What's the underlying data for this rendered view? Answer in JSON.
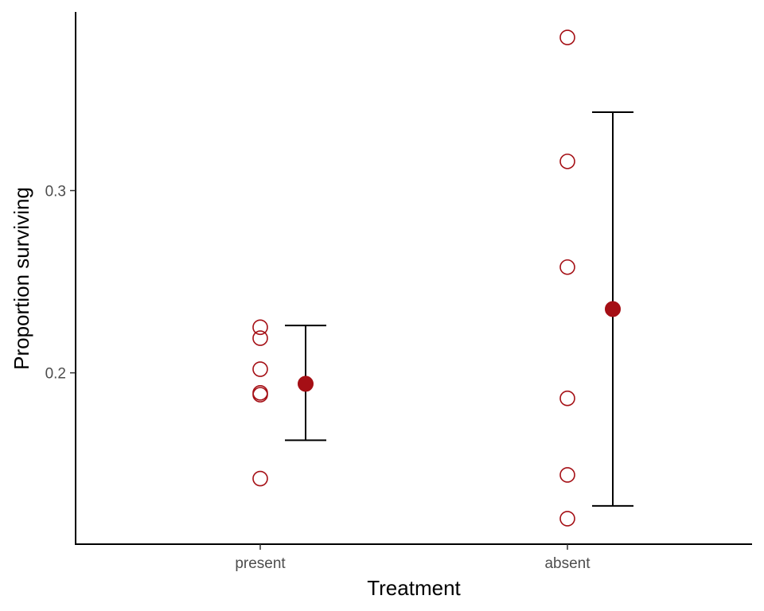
{
  "chart_data": {
    "type": "scatter",
    "title": "",
    "xlabel": "Treatment",
    "ylabel": "Proportion surviving",
    "categories": [
      "present",
      "absent"
    ],
    "y_ticks": [
      0.2,
      0.3
    ],
    "y_tick_labels": [
      "0.2",
      "0.3"
    ],
    "ylim": [
      0.106,
      0.398
    ],
    "grid": false,
    "legend": "none",
    "point_color": "#A50F15",
    "errorbar_color": "#000000",
    "series": [
      {
        "category": "present",
        "observations": [
          0.225,
          0.219,
          0.202,
          0.189,
          0.188,
          0.142
        ],
        "mean": 0.194,
        "lower": 0.163,
        "upper": 0.226
      },
      {
        "category": "absent",
        "observations": [
          0.384,
          0.316,
          0.258,
          0.186,
          0.144,
          0.12
        ],
        "mean": 0.235,
        "lower": 0.127,
        "upper": 0.343
      }
    ]
  }
}
